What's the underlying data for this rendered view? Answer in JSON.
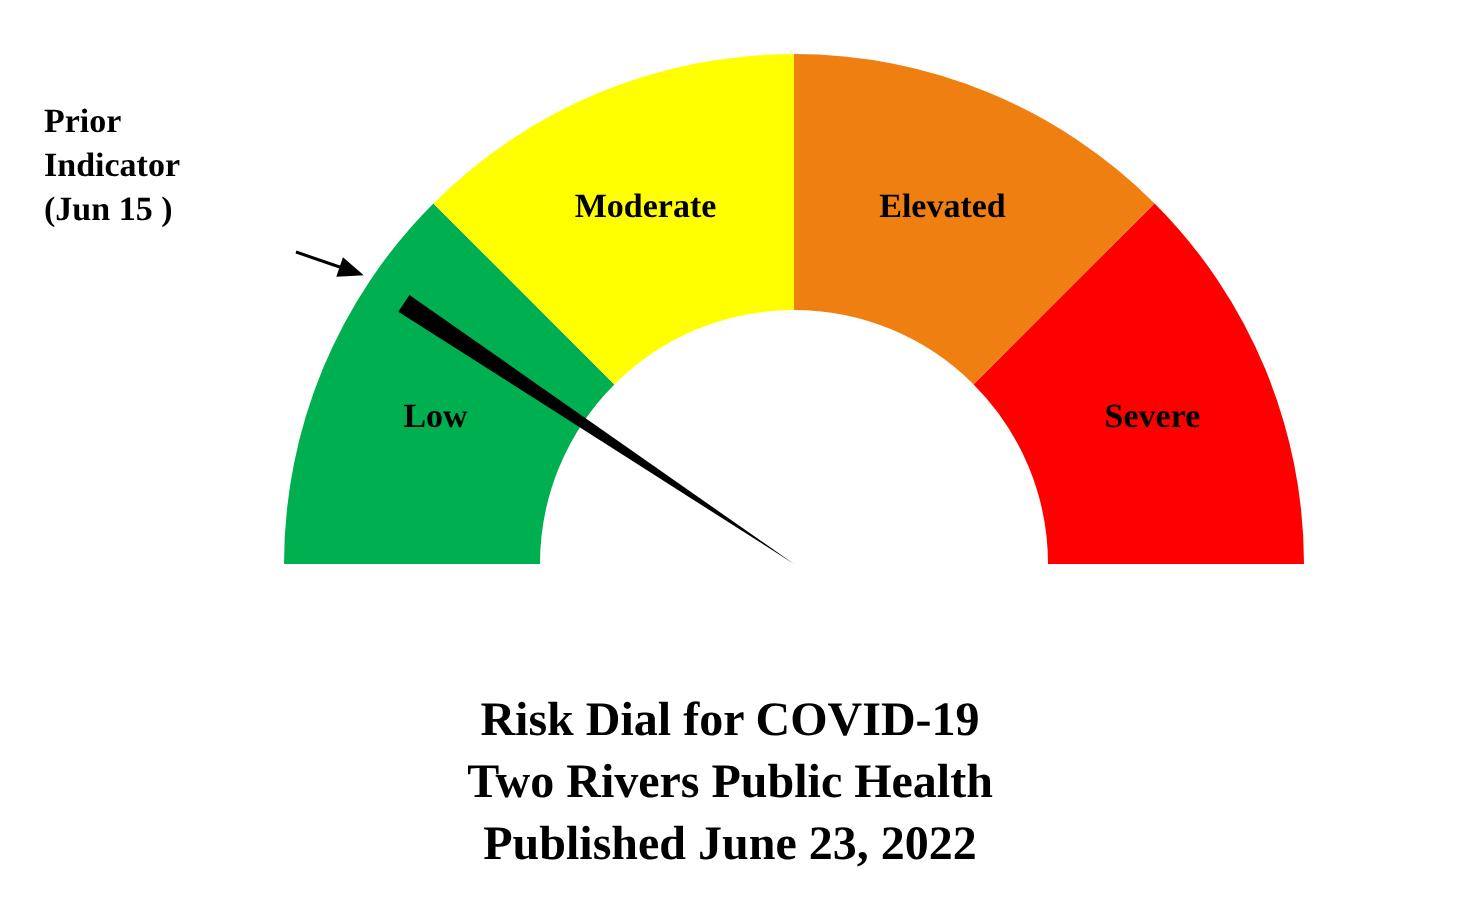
{
  "chart_data": {
    "type": "donut",
    "title": "Risk Dial for COVID-19\nTwo Rivers Public Health\nPublished June 23, 2022",
    "categories": [
      "Low",
      "Moderate",
      "Elevated",
      "Severe"
    ],
    "values": [
      25,
      25,
      25,
      25
    ],
    "colors": [
      "#00b050",
      "#ffff00",
      "#f07f12",
      "#ff0000"
    ],
    "needle": "Low",
    "annotations": [
      "Prior\nIndicator\n(Jun 15 )"
    ],
    "legend": false
  }
}
